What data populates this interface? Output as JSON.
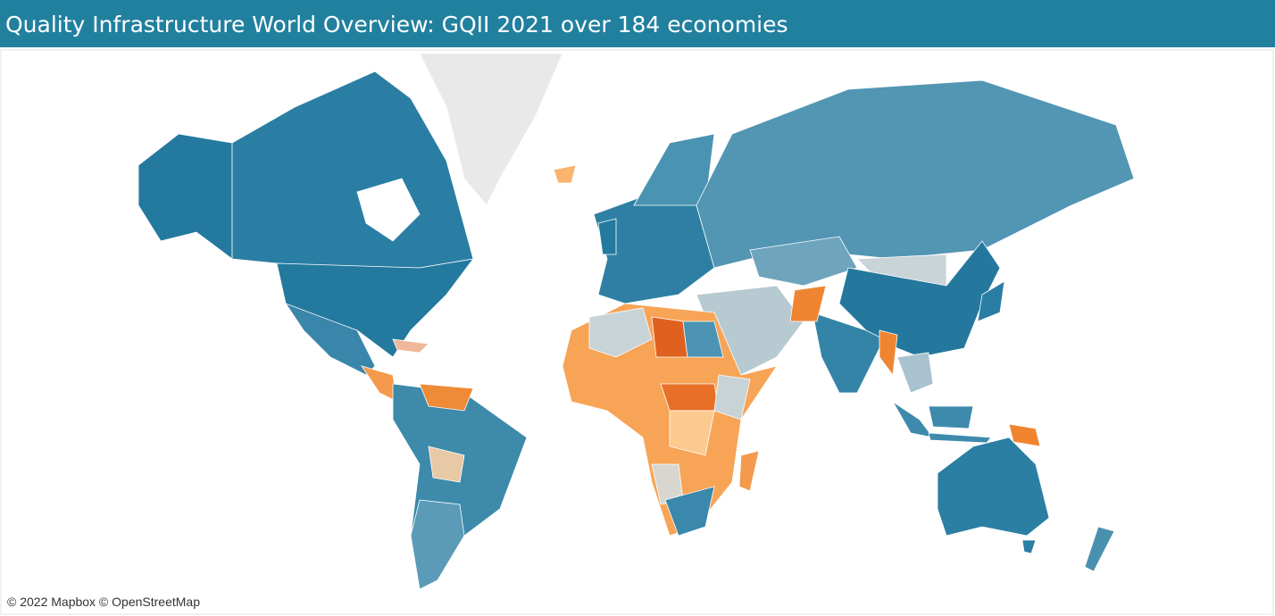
{
  "header": {
    "title": "Quality Infrastructure World Overview: GQII 2021 over 184 economies"
  },
  "map": {
    "attribution": "© 2022 Mapbox © OpenStreetMap"
  }
}
